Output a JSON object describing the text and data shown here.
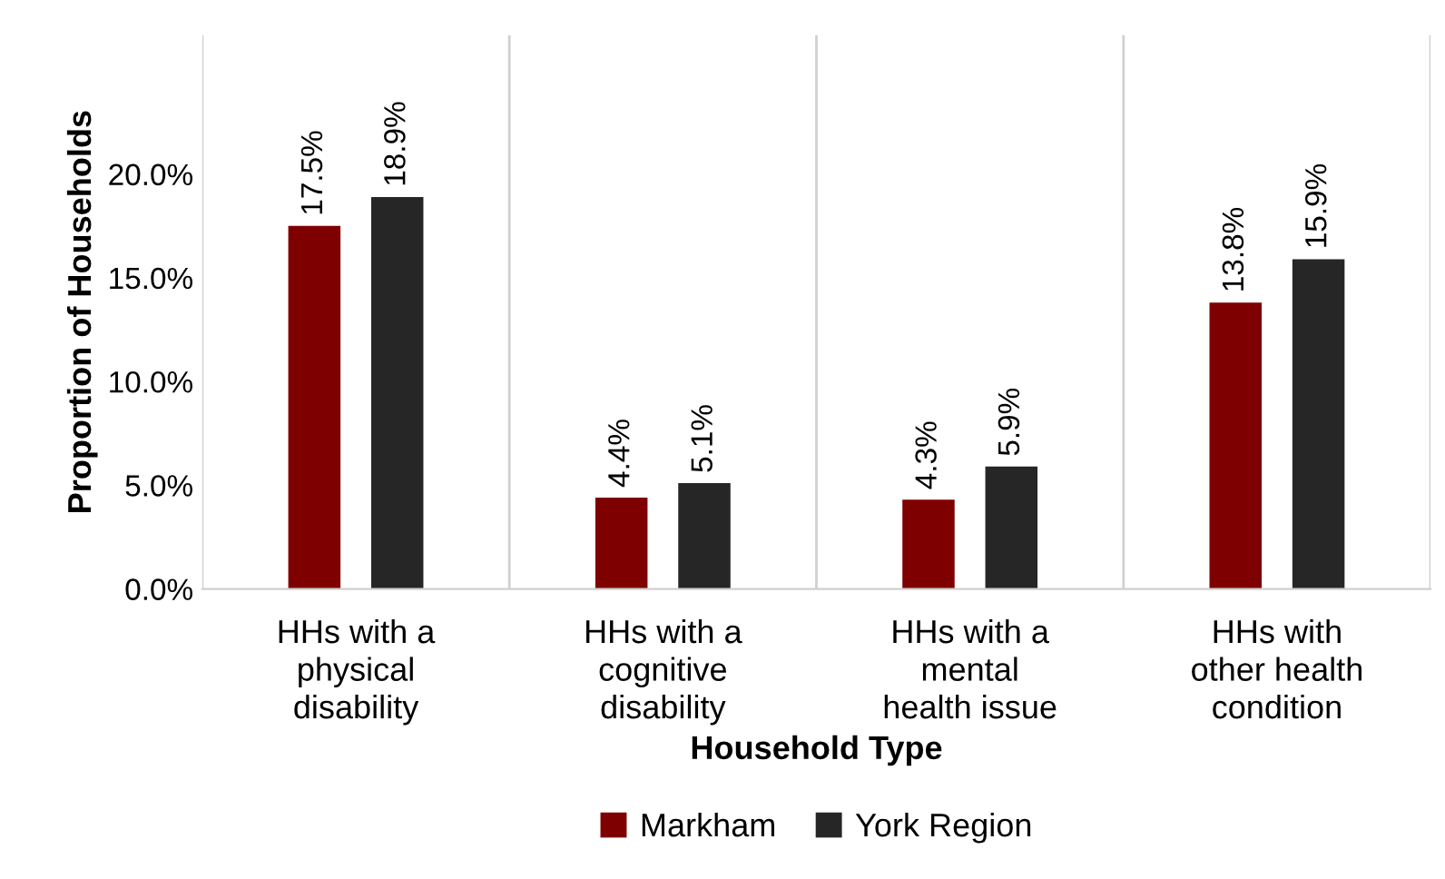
{
  "chart_data": {
    "type": "bar",
    "ylabel": "Proportion of Households",
    "xlabel": "Household Type",
    "categories": [
      "HHs with a\nphysical\ndisability",
      "HHs with a\ncognitive\ndisability",
      "HHs with a\nmental\nhealth issue",
      "HHs with\nother health\ncondition"
    ],
    "series": [
      {
        "name": "Markham",
        "color": "#7f0000",
        "values": [
          17.5,
          4.4,
          4.3,
          13.8
        ]
      },
      {
        "name": "York Region",
        "color": "#262626",
        "values": [
          18.9,
          5.1,
          5.9,
          15.9
        ]
      }
    ],
    "ylim": [
      0,
      26.7
    ],
    "yticks": [
      {
        "value": 0,
        "label": "0.0%"
      },
      {
        "value": 5,
        "label": "5.0%"
      },
      {
        "value": 10,
        "label": "10.0%"
      },
      {
        "value": 15,
        "label": "15.0%"
      },
      {
        "value": 20,
        "label": "20.0%"
      }
    ],
    "value_labels": [
      [
        "17.5%",
        "4.4%",
        "4.3%",
        "13.8%"
      ],
      [
        "18.9%",
        "5.1%",
        "5.9%",
        "15.9%"
      ]
    ],
    "grid": "x",
    "legend": "bottom"
  }
}
